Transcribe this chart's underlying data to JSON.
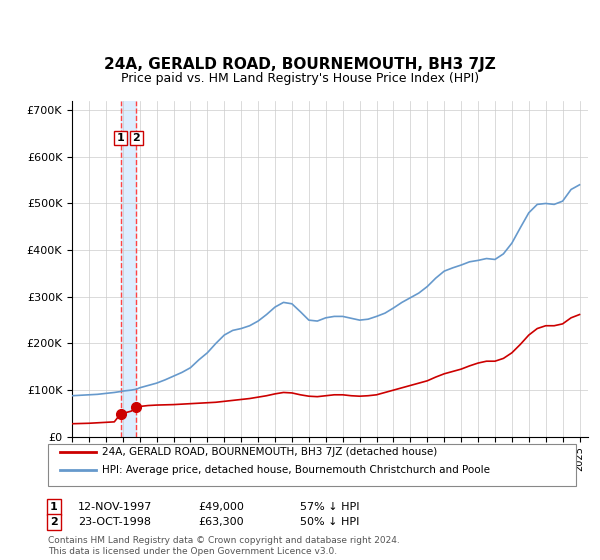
{
  "title": "24A, GERALD ROAD, BOURNEMOUTH, BH3 7JZ",
  "subtitle": "Price paid vs. HM Land Registry's House Price Index (HPI)",
  "red_line_color": "#cc0000",
  "blue_line_color": "#6699cc",
  "sale_marker_color": "#cc0000",
  "vline_color": "#ff4444",
  "shade_color": "#ddeeff",
  "grid_color": "#cccccc",
  "background_color": "#ffffff",
  "sale1_year": 1997.87,
  "sale1_price": 49000,
  "sale1_label": "1",
  "sale2_year": 1998.81,
  "sale2_price": 63300,
  "sale2_label": "2",
  "legend_entry1": "24A, GERALD ROAD, BOURNEMOUTH, BH3 7JZ (detached house)",
  "legend_entry2": "HPI: Average price, detached house, Bournemouth Christchurch and Poole",
  "table_row1": "1    12-NOV-1997    £49,000    57% ↓ HPI",
  "table_row2": "2    23-OCT-1998    £63,300    50% ↓ HPI",
  "footer": "Contains HM Land Registry data © Crown copyright and database right 2024.\nThis data is licensed under the Open Government Licence v3.0.",
  "ylim": [
    0,
    720000
  ],
  "xlim_start": 1995.0,
  "xlim_end": 2025.5
}
